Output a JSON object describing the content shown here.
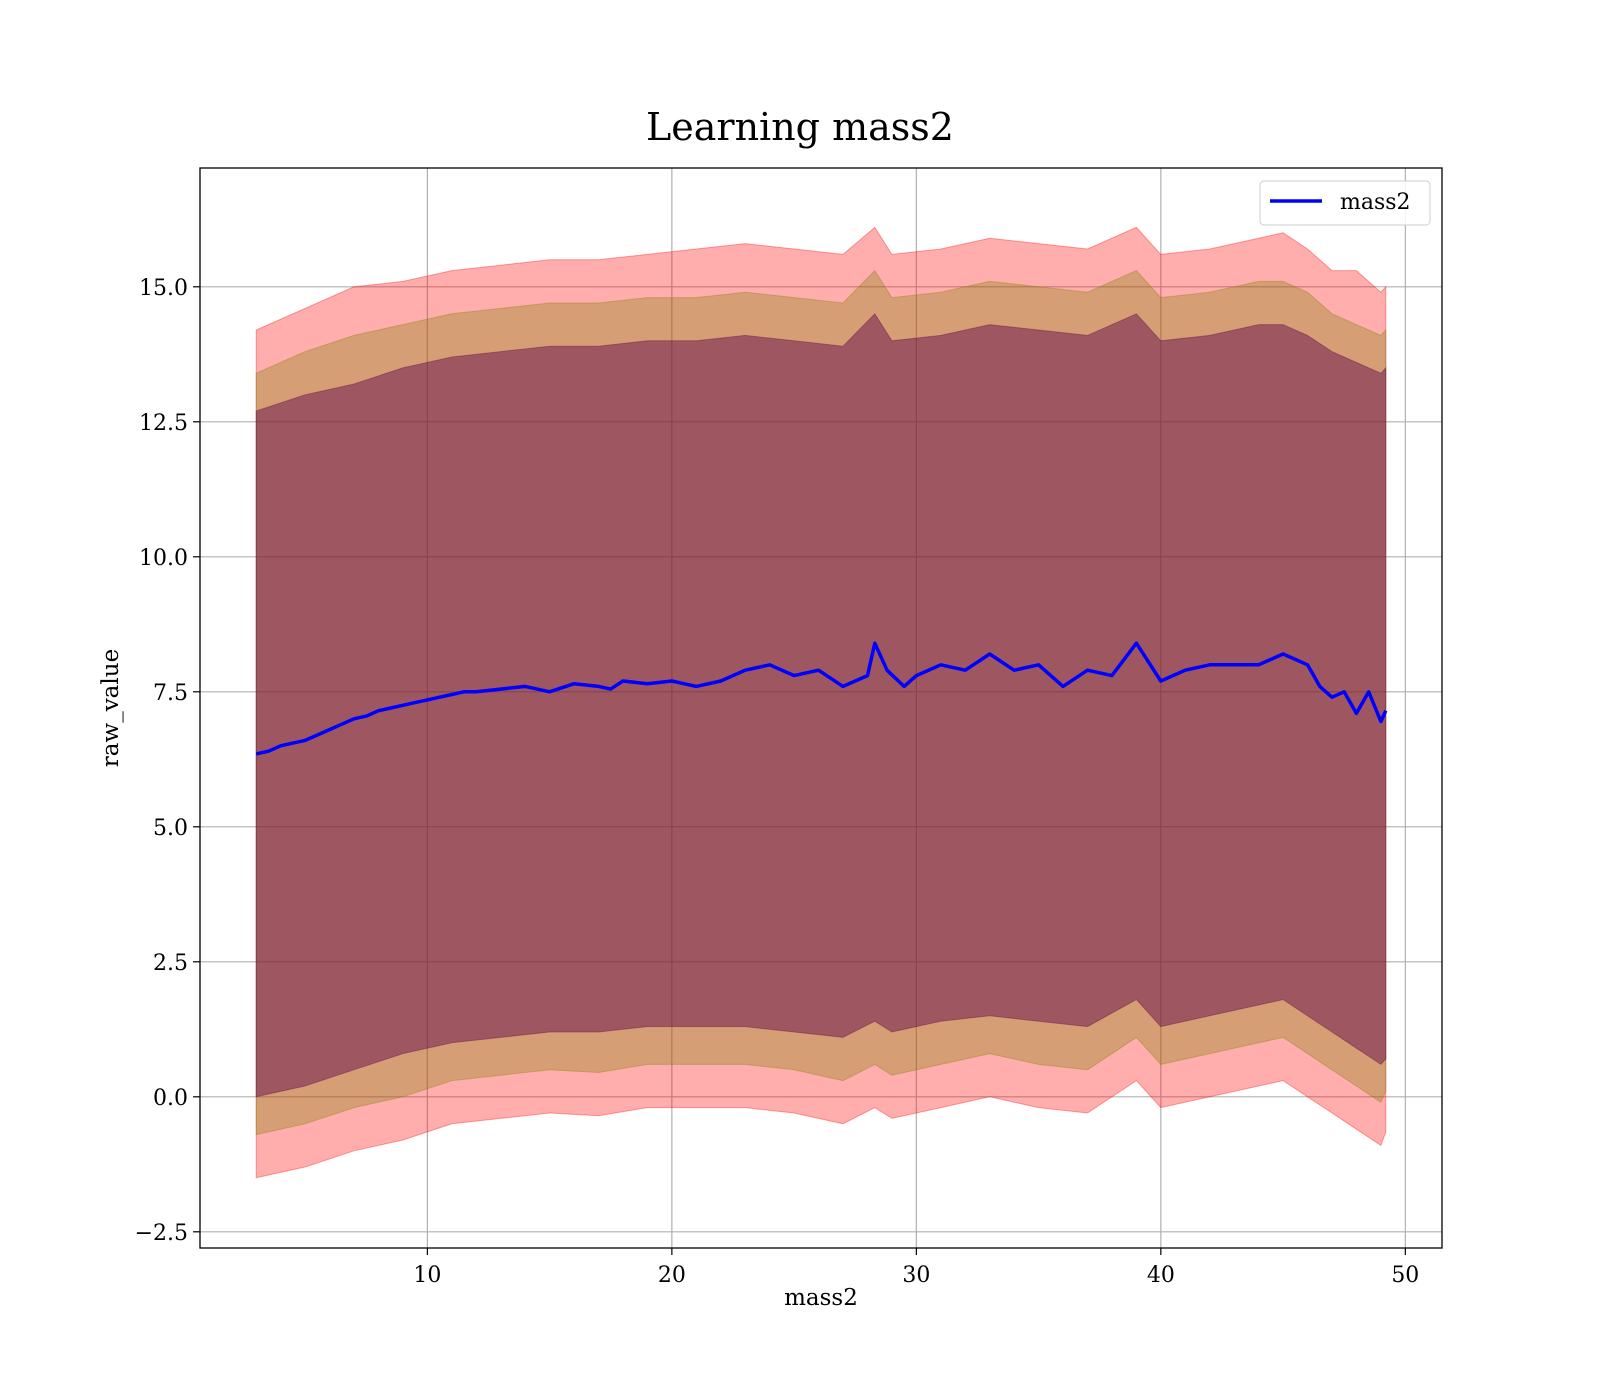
{
  "chart_data": {
    "type": "line",
    "title": "Learning mass2",
    "xlabel": "mass2",
    "ylabel": "raw_value",
    "xlim": [
      0.7,
      51.5
    ],
    "ylim": [
      -2.8,
      17.2
    ],
    "xticks": [
      10,
      20,
      30,
      40,
      50
    ],
    "xtick_labels": [
      "10",
      "20",
      "30",
      "40",
      "50"
    ],
    "yticks": [
      -2.5,
      0.0,
      2.5,
      5.0,
      7.5,
      10.0,
      12.5,
      15.0
    ],
    "ytick_labels": [
      "−2.5",
      "0.0",
      "2.5",
      "5.0",
      "7.5",
      "10.0",
      "12.5",
      "15.0"
    ],
    "grid": true,
    "legend_position": "top-right",
    "series": [
      {
        "name": "mass2",
        "color": "#0000ff",
        "x": [
          3.0,
          3.5,
          4.0,
          4.5,
          5.0,
          5.5,
          6.0,
          6.5,
          7.0,
          7.5,
          8.0,
          8.5,
          9.0,
          9.5,
          10.0,
          10.5,
          11.0,
          11.5,
          12.0,
          13.0,
          14.0,
          15.0,
          16.0,
          17.0,
          17.5,
          18.0,
          19.0,
          20.0,
          21.0,
          22.0,
          23.0,
          24.0,
          25.0,
          26.0,
          27.0,
          28.0,
          28.3,
          28.8,
          29.5,
          30.0,
          31.0,
          32.0,
          33.0,
          34.0,
          35.0,
          36.0,
          37.0,
          38.0,
          39.0,
          40.0,
          41.0,
          42.0,
          43.0,
          44.0,
          45.0,
          45.5,
          46.0,
          46.5,
          47.0,
          47.5,
          48.0,
          48.5,
          49.0,
          49.2
        ],
        "values": [
          6.35,
          6.4,
          6.5,
          6.55,
          6.6,
          6.7,
          6.8,
          6.9,
          7.0,
          7.05,
          7.15,
          7.2,
          7.25,
          7.3,
          7.35,
          7.4,
          7.45,
          7.5,
          7.5,
          7.55,
          7.6,
          7.5,
          7.65,
          7.6,
          7.55,
          7.7,
          7.65,
          7.7,
          7.6,
          7.7,
          7.9,
          8.0,
          7.8,
          7.9,
          7.6,
          7.8,
          8.4,
          7.9,
          7.6,
          7.8,
          8.0,
          7.9,
          8.2,
          7.9,
          8.0,
          7.6,
          7.9,
          7.8,
          8.4,
          7.7,
          7.9,
          8.0,
          8.0,
          8.0,
          8.2,
          8.1,
          8.0,
          7.6,
          7.4,
          7.5,
          7.1,
          7.5,
          6.95,
          7.15
        ]
      }
    ],
    "bands": [
      {
        "color": "#ff0000",
        "opacity": 0.32,
        "x": [
          3.0,
          5.0,
          7.0,
          9.0,
          11.0,
          13.0,
          15.0,
          17.0,
          19.0,
          21.0,
          23.0,
          25.0,
          27.0,
          28.3,
          29.0,
          31.0,
          33.0,
          35.0,
          37.0,
          39.0,
          40.0,
          42.0,
          44.0,
          45.0,
          46.0,
          47.0,
          48.0,
          49.0,
          49.2
        ],
        "upper": [
          14.2,
          14.6,
          15.0,
          15.1,
          15.3,
          15.4,
          15.5,
          15.5,
          15.6,
          15.7,
          15.8,
          15.7,
          15.6,
          16.1,
          15.6,
          15.7,
          15.9,
          15.8,
          15.7,
          16.1,
          15.6,
          15.7,
          15.9,
          16.0,
          15.7,
          15.3,
          15.3,
          14.9,
          15.0
        ],
        "lower": [
          -1.5,
          -1.3,
          -1.0,
          -0.8,
          -0.5,
          -0.4,
          -0.3,
          -0.35,
          -0.2,
          -0.2,
          -0.2,
          -0.3,
          -0.5,
          -0.2,
          -0.4,
          -0.2,
          0.0,
          -0.2,
          -0.3,
          0.3,
          -0.2,
          0.0,
          0.2,
          0.3,
          0.0,
          -0.3,
          -0.6,
          -0.9,
          -0.65
        ]
      },
      {
        "color": "#808000",
        "opacity": 0.32,
        "x": [
          3.0,
          5.0,
          7.0,
          9.0,
          11.0,
          13.0,
          15.0,
          17.0,
          19.0,
          21.0,
          23.0,
          25.0,
          27.0,
          28.3,
          29.0,
          31.0,
          33.0,
          35.0,
          37.0,
          39.0,
          40.0,
          42.0,
          44.0,
          45.0,
          46.0,
          47.0,
          48.0,
          49.0,
          49.2
        ],
        "upper": [
          13.4,
          13.8,
          14.1,
          14.3,
          14.5,
          14.6,
          14.7,
          14.7,
          14.8,
          14.8,
          14.9,
          14.8,
          14.7,
          15.3,
          14.8,
          14.9,
          15.1,
          15.0,
          14.9,
          15.3,
          14.8,
          14.9,
          15.1,
          15.1,
          14.9,
          14.5,
          14.3,
          14.1,
          14.2
        ],
        "lower": [
          -0.7,
          -0.5,
          -0.2,
          0.0,
          0.3,
          0.4,
          0.5,
          0.45,
          0.6,
          0.6,
          0.6,
          0.5,
          0.3,
          0.6,
          0.4,
          0.6,
          0.8,
          0.6,
          0.5,
          1.1,
          0.6,
          0.8,
          1.0,
          1.1,
          0.8,
          0.5,
          0.2,
          -0.1,
          0.1
        ]
      },
      {
        "color": "#5a0048",
        "opacity": 0.45,
        "x": [
          3.0,
          5.0,
          7.0,
          9.0,
          11.0,
          13.0,
          15.0,
          17.0,
          19.0,
          21.0,
          23.0,
          25.0,
          27.0,
          28.3,
          29.0,
          31.0,
          33.0,
          35.0,
          37.0,
          39.0,
          40.0,
          42.0,
          44.0,
          45.0,
          46.0,
          47.0,
          48.0,
          49.0,
          49.2
        ],
        "upper": [
          12.7,
          13.0,
          13.2,
          13.5,
          13.7,
          13.8,
          13.9,
          13.9,
          14.0,
          14.0,
          14.1,
          14.0,
          13.9,
          14.5,
          14.0,
          14.1,
          14.3,
          14.2,
          14.1,
          14.5,
          14.0,
          14.1,
          14.3,
          14.3,
          14.1,
          13.8,
          13.6,
          13.4,
          13.5
        ],
        "lower": [
          0.0,
          0.2,
          0.5,
          0.8,
          1.0,
          1.1,
          1.2,
          1.2,
          1.3,
          1.3,
          1.3,
          1.2,
          1.1,
          1.4,
          1.2,
          1.4,
          1.5,
          1.4,
          1.3,
          1.8,
          1.3,
          1.5,
          1.7,
          1.8,
          1.5,
          1.2,
          0.9,
          0.6,
          0.7
        ]
      }
    ]
  }
}
